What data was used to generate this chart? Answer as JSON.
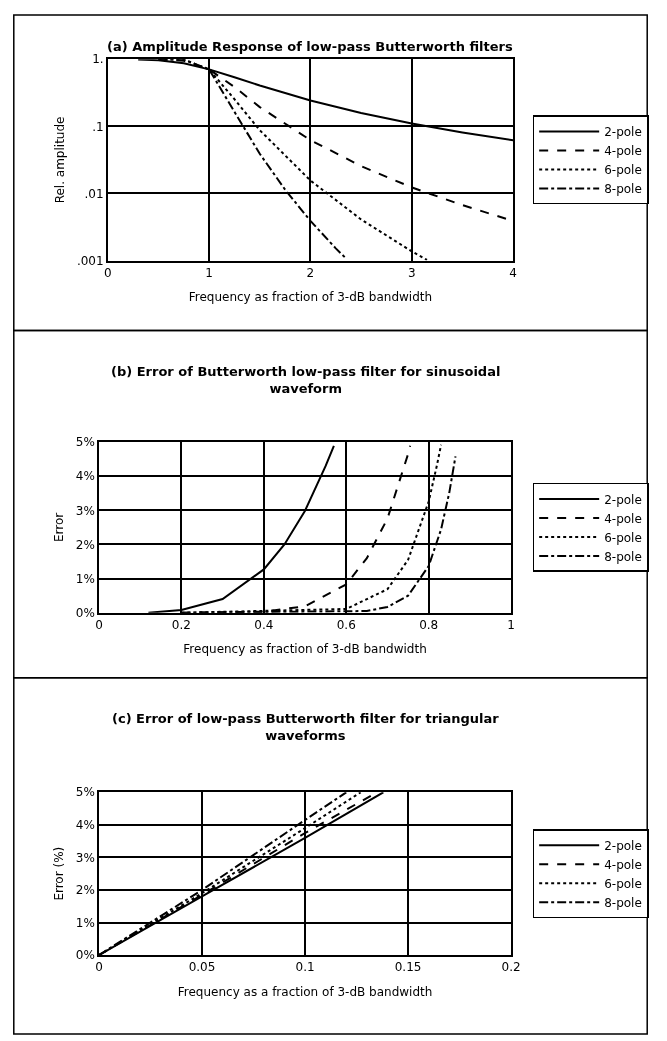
{
  "chart_data": [
    {
      "type": "line",
      "title": "(a) Amplitude Response of low-pass Butterworth filters",
      "xlabel": "Frequency as fraction of 3-dB bandwidth",
      "ylabel": "Rel. amplitude",
      "log": "y",
      "grid": true,
      "legend": "right",
      "marker": "none",
      "xlim": [
        0,
        4
      ],
      "xticks": [
        0,
        1,
        2,
        3,
        4
      ],
      "ylim": [
        0.001,
        1
      ],
      "yticks": [
        {
          "value": 0.001,
          "label": ".001"
        },
        {
          "value": 0.01,
          "label": ".01"
        },
        {
          "value": 0.1,
          "label": ".1"
        },
        {
          "value": 1,
          "label": "1."
        }
      ],
      "series": [
        {
          "name": "2-pole",
          "color": "#000000",
          "line_style": "solid",
          "x": [
            0.3,
            0.5,
            0.75,
            1,
            1.25,
            1.5,
            2,
            2.5,
            3,
            3.5,
            4
          ],
          "values": [
            0.996,
            0.97,
            0.872,
            0.707,
            0.539,
            0.406,
            0.243,
            0.158,
            0.11,
            0.081,
            0.062
          ]
        },
        {
          "name": "4-pole",
          "color": "#000000",
          "line_style": "dashed",
          "x": [
            0.5,
            0.75,
            1,
            1.25,
            1.5,
            2,
            2.5,
            3,
            3.5,
            4
          ],
          "values": [
            0.998,
            0.951,
            0.707,
            0.387,
            0.194,
            0.0624,
            0.0256,
            0.0123,
            0.0067,
            0.0039
          ]
        },
        {
          "name": "6-pole",
          "color": "#000000",
          "line_style": "dotted",
          "x": [
            0.5,
            0.75,
            1,
            1.25,
            1.5,
            2,
            2.5,
            3,
            3.15
          ],
          "values": [
            1.0,
            0.985,
            0.707,
            0.254,
            0.0877,
            0.0156,
            0.0041,
            0.00137,
            0.00102
          ]
        },
        {
          "name": "8-pole",
          "color": "#000000",
          "line_style": "dashdot",
          "x": [
            0.5,
            0.75,
            1,
            1.25,
            1.5,
            1.75,
            2,
            2.25,
            2.35
          ],
          "values": [
            1.0,
            0.995,
            0.707,
            0.165,
            0.039,
            0.0114,
            0.0039,
            0.00152,
            0.00108
          ]
        }
      ]
    },
    {
      "type": "line",
      "title": "(b) Error of Butterworth low-pass filter for sinusoidal waveform",
      "xlabel": "Frequency as fraction of 3-dB bandwidth",
      "ylabel": "Error",
      "grid": true,
      "legend": "right",
      "marker": "none",
      "xlim": [
        0,
        1
      ],
      "xticks": [
        0,
        0.2,
        0.4,
        0.6,
        0.8,
        1
      ],
      "ylim": [
        0,
        5
      ],
      "yticks": [
        {
          "value": 0,
          "label": "0%"
        },
        {
          "value": 1,
          "label": "1%"
        },
        {
          "value": 2,
          "label": "2%"
        },
        {
          "value": 3,
          "label": "3%"
        },
        {
          "value": 4,
          "label": "4%"
        },
        {
          "value": 5,
          "label": "5%"
        }
      ],
      "series": [
        {
          "name": "2-pole",
          "color": "#000000",
          "line_style": "solid",
          "x": [
            0.12,
            0.2,
            0.3,
            0.4,
            0.45,
            0.5,
            0.55,
            0.57
          ],
          "values": [
            0,
            0.08,
            0.4,
            1.27,
            2.0,
            2.99,
            4.3,
            4.89
          ]
        },
        {
          "name": "4-pole",
          "color": "#000000",
          "line_style": "dashed",
          "x": [
            0.2,
            0.4,
            0.5,
            0.6,
            0.65,
            0.7,
            0.75,
            0.755
          ],
          "values": [
            0,
            0.03,
            0.19,
            0.83,
            1.6,
            2.76,
            4.65,
            4.89
          ]
        },
        {
          "name": "6-pole",
          "color": "#000000",
          "line_style": "dotted",
          "x": [
            0.2,
            0.6,
            0.7,
            0.75,
            0.8,
            0.82,
            0.83
          ],
          "values": [
            0,
            0.11,
            0.69,
            1.55,
            3.26,
            4.32,
            4.92
          ]
        },
        {
          "name": "8-pole",
          "color": "#000000",
          "line_style": "dashdot",
          "x": [
            0.2,
            0.65,
            0.7,
            0.75,
            0.8,
            0.83,
            0.85,
            0.865
          ],
          "values": [
            0,
            0.05,
            0.17,
            0.5,
            1.37,
            2.44,
            3.52,
            4.58
          ]
        }
      ]
    },
    {
      "type": "line",
      "title": "(c) Error of low-pass Butterworth filter for triangular waveforms",
      "xlabel": "Frequency as a fraction of 3-dB bandwidth",
      "ylabel": "Error (%)",
      "grid": true,
      "legend": "right",
      "marker": "none",
      "xlim": [
        0,
        0.2
      ],
      "xticks": [
        0,
        0.05,
        0.1,
        0.15,
        0.2
      ],
      "ylim": [
        0,
        5
      ],
      "yticks": [
        {
          "value": 0,
          "label": "0%"
        },
        {
          "value": 1,
          "label": "1%"
        },
        {
          "value": 2,
          "label": "2%"
        },
        {
          "value": 3,
          "label": "3%"
        },
        {
          "value": 4,
          "label": "4%"
        },
        {
          "value": 5,
          "label": "5%"
        }
      ],
      "series": [
        {
          "name": "2-pole",
          "color": "#000000",
          "line_style": "solid",
          "x": [
            0,
            0.05,
            0.1,
            0.138
          ],
          "values": [
            0,
            1.8,
            3.6,
            5
          ]
        },
        {
          "name": "4-pole",
          "color": "#000000",
          "line_style": "dashed",
          "x": [
            0,
            0.05,
            0.1,
            0.135
          ],
          "values": [
            0,
            1.85,
            3.75,
            5
          ]
        },
        {
          "name": "6-pole",
          "color": "#000000",
          "line_style": "dotted",
          "x": [
            0,
            0.05,
            0.1,
            0.127
          ],
          "values": [
            0,
            1.9,
            3.9,
            5
          ]
        },
        {
          "name": "8-pole",
          "color": "#000000",
          "line_style": "dashdot",
          "x": [
            0,
            0.05,
            0.1,
            0.12
          ],
          "values": [
            0,
            2.0,
            4.15,
            5
          ]
        }
      ]
    }
  ]
}
